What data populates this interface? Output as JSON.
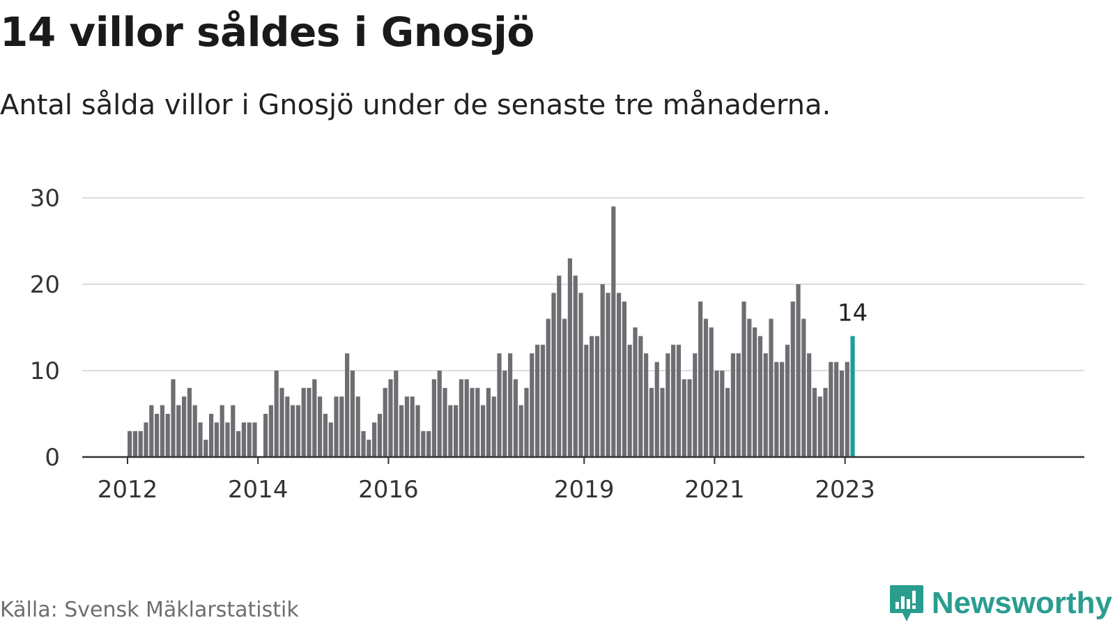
{
  "header": {
    "title": "14 villor såldes i Gnosjö",
    "subtitle": "Antal sålda villor i Gnosjö under de senaste tre månaderna."
  },
  "footer": {
    "source": "Källa: Svensk Mäklarstatistik",
    "brand": "Newsworthy",
    "brand_icon": "newsworthy-logo-icon"
  },
  "colors": {
    "bar": "#6e6d72",
    "highlight": "#1a9e96",
    "grid": "#dcdcdc",
    "axis": "#333333",
    "text": "#333333"
  },
  "chart_data": {
    "type": "bar",
    "title": "14 villor såldes i Gnosjö",
    "xlabel": "",
    "ylabel": "",
    "ylim": [
      0,
      30
    ],
    "yticks": [
      0,
      10,
      20,
      30
    ],
    "grid": true,
    "xticks": [
      {
        "label": "2012",
        "index": 0
      },
      {
        "label": "2014",
        "index": 24
      },
      {
        "label": "2016",
        "index": 48
      },
      {
        "label": "2019",
        "index": 84
      },
      {
        "label": "2021",
        "index": 108
      },
      {
        "label": "2023",
        "index": 132
      }
    ],
    "highlight_index": 133,
    "highlight_label": "14",
    "series": [
      {
        "name": "Antal sålda villor",
        "values": [
          3,
          3,
          3,
          4,
          6,
          5,
          6,
          5,
          9,
          6,
          7,
          8,
          6,
          4,
          2,
          5,
          4,
          6,
          4,
          6,
          3,
          4,
          4,
          4,
          null,
          5,
          6,
          10,
          8,
          7,
          6,
          6,
          8,
          8,
          9,
          7,
          5,
          4,
          7,
          7,
          12,
          10,
          7,
          3,
          2,
          4,
          5,
          8,
          9,
          10,
          6,
          7,
          7,
          6,
          3,
          3,
          9,
          10,
          8,
          6,
          6,
          9,
          9,
          8,
          8,
          6,
          8,
          7,
          12,
          10,
          12,
          9,
          6,
          8,
          12,
          13,
          13,
          16,
          19,
          21,
          16,
          23,
          21,
          19,
          13,
          14,
          14,
          20,
          19,
          29,
          19,
          18,
          13,
          15,
          14,
          12,
          8,
          11,
          8,
          12,
          13,
          13,
          9,
          9,
          12,
          18,
          16,
          15,
          10,
          10,
          8,
          12,
          12,
          18,
          16,
          15,
          14,
          12,
          16,
          11,
          11,
          13,
          18,
          20,
          16,
          12,
          8,
          7,
          8,
          11,
          11,
          10,
          11,
          14
        ]
      }
    ]
  }
}
